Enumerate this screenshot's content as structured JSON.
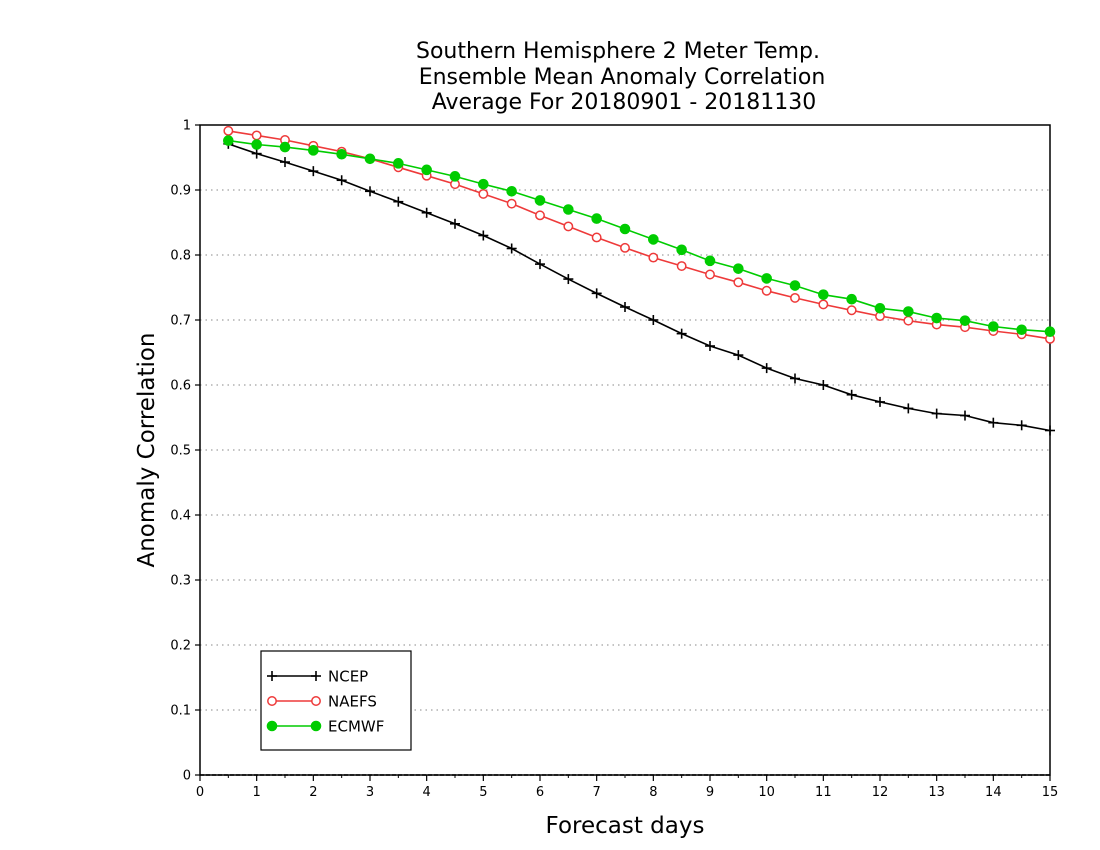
{
  "chart_data": {
    "type": "line",
    "title_lines": [
      "Southern Hemisphere 2 Meter Temp.",
      "Ensemble Mean Anomaly Correlation",
      "Average For 20180901 - 20181130"
    ],
    "xlabel": "Forecast days",
    "ylabel": "Anomaly Correlation",
    "xlim": [
      0,
      15
    ],
    "ylim": [
      0,
      1
    ],
    "x_ticks": [
      0,
      1,
      2,
      3,
      4,
      5,
      6,
      7,
      8,
      9,
      10,
      11,
      12,
      13,
      14,
      15
    ],
    "y_ticks": [
      0,
      0.1,
      0.2,
      0.3,
      0.4,
      0.5,
      0.6,
      0.7,
      0.8,
      0.9,
      1
    ],
    "y_tick_labels": [
      "0",
      "0.1",
      "0.2",
      "0.3",
      "0.4",
      "0.5",
      "0.6",
      "0.7",
      "0.8",
      "0.9",
      "1"
    ],
    "x_tick_labels": [
      "0",
      "1",
      "2",
      "3",
      "4",
      "5",
      "6",
      "7",
      "8",
      "9",
      "10",
      "11",
      "12",
      "13",
      "14",
      "15"
    ],
    "grid": "horizontal dotted",
    "legend_position": "bottom-left",
    "x": [
      0.5,
      1,
      1.5,
      2,
      2.5,
      3,
      3.5,
      4,
      4.5,
      5,
      5.5,
      6,
      6.5,
      7,
      7.5,
      8,
      8.5,
      9,
      9.5,
      10,
      10.5,
      11,
      11.5,
      12,
      12.5,
      13,
      13.5,
      14,
      14.5,
      15
    ],
    "series": [
      {
        "name": "NCEP",
        "color": "#000000",
        "marker": "plus",
        "values": [
          0.971,
          0.956,
          0.943,
          0.929,
          0.915,
          0.898,
          0.882,
          0.865,
          0.848,
          0.83,
          0.81,
          0.786,
          0.763,
          0.741,
          0.72,
          0.7,
          0.679,
          0.66,
          0.646,
          0.626,
          0.61,
          0.6,
          0.585,
          0.574,
          0.564,
          0.556,
          0.553,
          0.542,
          0.538,
          0.53
        ]
      },
      {
        "name": "NAEFS",
        "color": "#ee3a3a",
        "marker": "open-circle",
        "values": [
          0.991,
          0.984,
          0.977,
          0.968,
          0.959,
          0.948,
          0.935,
          0.922,
          0.909,
          0.894,
          0.879,
          0.861,
          0.844,
          0.827,
          0.811,
          0.796,
          0.783,
          0.77,
          0.758,
          0.745,
          0.734,
          0.724,
          0.715,
          0.706,
          0.699,
          0.693,
          0.689,
          0.683,
          0.678,
          0.671
        ]
      },
      {
        "name": "ECMWF",
        "color": "#00cc00",
        "marker": "filled-circle",
        "values": [
          0.976,
          0.97,
          0.966,
          0.961,
          0.955,
          0.948,
          0.941,
          0.931,
          0.921,
          0.909,
          0.898,
          0.884,
          0.87,
          0.856,
          0.84,
          0.824,
          0.808,
          0.791,
          0.779,
          0.764,
          0.753,
          0.739,
          0.732,
          0.718,
          0.713,
          0.703,
          0.699,
          0.69,
          0.685,
          0.682
        ]
      }
    ]
  }
}
